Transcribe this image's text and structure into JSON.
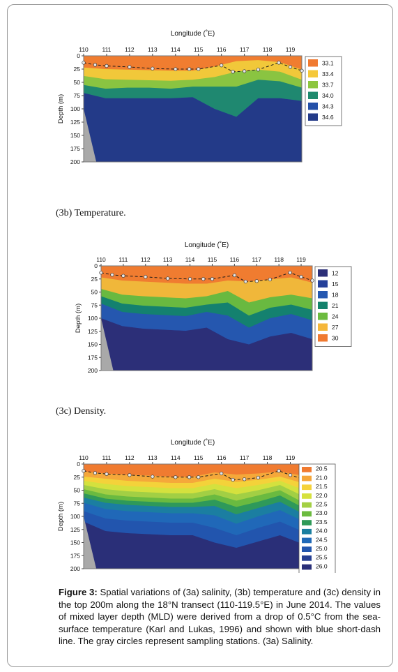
{
  "figure": {
    "caption_label": "Figure 3:",
    "caption_text": " Spatial variations of (3a) salinity, (3b) temperature and (3c) density in the top 200m along the 18°N transect (110-119.5°E) in June 2014. The values of mixed layer depth (MLD) were derived from a drop of 0.5°C from the sea-surface temperature (Karl and Lukas, 1996) and shown with blue short-dash line. The gray circles represent sampling stations. (3a) Salinity.",
    "subcaption_b": "(3b) Temperature.",
    "subcaption_c": "(3c) Density."
  },
  "chart_data": [
    {
      "type": "heatmap",
      "panel": "salinity",
      "xlabel": "Longitude (˚E)",
      "ylabel": "Depth (m)",
      "xlim": [
        110,
        119.5
      ],
      "ylim": [
        0,
        200
      ],
      "x_ticks": [
        "110",
        "111",
        "112",
        "113",
        "114",
        "115",
        "116",
        "117",
        "118",
        "119"
      ],
      "y_ticks": [
        "0",
        "25",
        "50",
        "75",
        "100",
        "125",
        "150",
        "175",
        "200"
      ],
      "legend": {
        "labels": [
          "33.1",
          "33.4",
          "33.7",
          "34.0",
          "34.3",
          "34.6"
        ],
        "colors": [
          "#f07a30",
          "#f5c83a",
          "#8dc640",
          "#1f8a6e",
          "#2450a8",
          "#233a88"
        ]
      },
      "mld_depth": [
        13,
        17,
        19,
        21,
        24,
        25,
        25,
        25,
        18,
        30,
        29,
        26,
        13,
        21,
        28
      ],
      "station_lon": [
        110,
        110.5,
        111,
        112,
        113,
        114,
        114.6,
        115,
        116,
        116.5,
        117,
        117.6,
        118.5,
        119,
        119.5
      ]
    },
    {
      "type": "heatmap",
      "panel": "temperature",
      "xlabel": "Longitude (˚E)",
      "ylabel": "Depth (m)",
      "xlim": [
        110,
        119.5
      ],
      "ylim": [
        0,
        200
      ],
      "x_ticks": [
        "110",
        "111",
        "112",
        "113",
        "114",
        "115",
        "116",
        "117",
        "118",
        "119"
      ],
      "y_ticks": [
        "0",
        "25",
        "50",
        "75",
        "100",
        "125",
        "150",
        "175",
        "200"
      ],
      "legend": {
        "labels": [
          "12",
          "15",
          "18",
          "21",
          "24",
          "27",
          "30"
        ],
        "colors": [
          "#2c2f78",
          "#25409a",
          "#2558b0",
          "#14826c",
          "#6cbb3f",
          "#f5b73a",
          "#f07a30"
        ]
      },
      "mld_depth": [
        13,
        17,
        19,
        21,
        24,
        25,
        25,
        25,
        18,
        30,
        29,
        26,
        13,
        21,
        28
      ],
      "station_lon": [
        110,
        110.5,
        111,
        112,
        113,
        114,
        114.6,
        115,
        116,
        116.5,
        117,
        117.6,
        118.5,
        119,
        119.5
      ]
    },
    {
      "type": "heatmap",
      "panel": "density",
      "xlabel": "Longitude (˚E)",
      "ylabel": "Depth (m)",
      "xlim": [
        110,
        119.5
      ],
      "ylim": [
        0,
        200
      ],
      "x_ticks": [
        "110",
        "111",
        "112",
        "113",
        "114",
        "115",
        "116",
        "117",
        "118",
        "119"
      ],
      "y_ticks": [
        "0",
        "25",
        "50",
        "75",
        "100",
        "125",
        "150",
        "175",
        "200"
      ],
      "legend": {
        "labels": [
          "20.5",
          "21.0",
          "21.5",
          "22.0",
          "22.5",
          "23.0",
          "23.5",
          "24.0",
          "24.5",
          "25.0",
          "25.5",
          "26.0"
        ],
        "colors": [
          "#f07a30",
          "#f5a63a",
          "#f5d23a",
          "#d6e13e",
          "#a4d044",
          "#6cbb3f",
          "#2f9a58",
          "#1b7fa0",
          "#2069b8",
          "#2256ae",
          "#263f92",
          "#2a2f78"
        ]
      },
      "mld_depth": [
        13,
        17,
        19,
        21,
        24,
        25,
        25,
        25,
        18,
        30,
        29,
        26,
        13,
        21,
        28
      ],
      "station_lon": [
        110,
        110.5,
        111,
        112,
        113,
        114,
        114.6,
        115,
        116,
        116.5,
        117,
        117.6,
        118.5,
        119,
        119.5
      ]
    }
  ]
}
